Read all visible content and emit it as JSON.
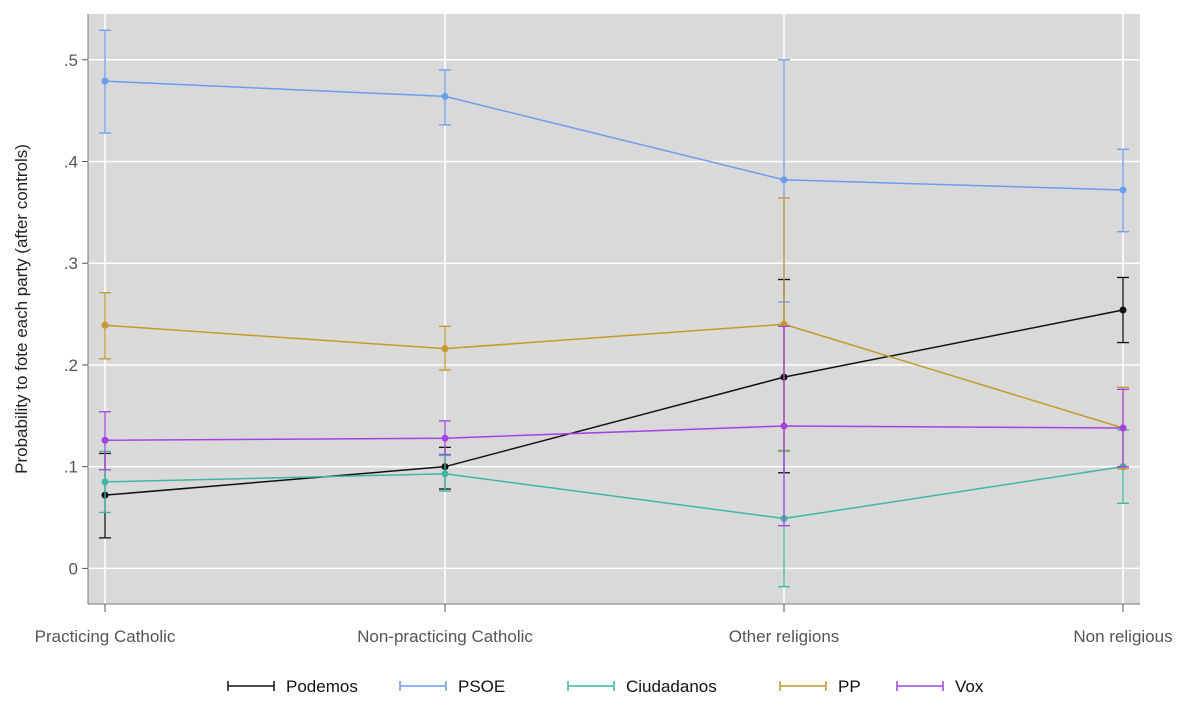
{
  "chart_data": {
    "type": "line",
    "categories": [
      "Practicing Catholic",
      "Non-practicing Catholic",
      "Other religions",
      "Non religious"
    ],
    "ylabel": "Probability to fote each party (after controls)",
    "ylim": [
      -0.035,
      0.545
    ],
    "yticks": [
      0,
      0.1,
      0.2,
      0.3,
      0.4,
      0.5
    ],
    "ytick_labels": [
      "0",
      ".1",
      ".2",
      ".3",
      ".4",
      ".5"
    ],
    "grid": true,
    "legend_position": "bottom",
    "series": [
      {
        "name": "Podemos",
        "color": "#111111",
        "values": [
          0.072,
          0.1,
          0.188,
          0.254
        ],
        "lower": [
          0.03,
          0.078,
          0.094,
          0.222
        ],
        "upper": [
          0.113,
          0.119,
          0.284,
          0.286
        ]
      },
      {
        "name": "PSOE",
        "color": "#6b9ded",
        "values": [
          0.479,
          0.464,
          0.382,
          0.372
        ],
        "lower": [
          0.428,
          0.436,
          0.262,
          0.331
        ],
        "upper": [
          0.529,
          0.49,
          0.5,
          0.412
        ]
      },
      {
        "name": "Ciudadanos",
        "color": "#3fb6a3",
        "values": [
          0.085,
          0.093,
          0.049,
          0.1
        ],
        "lower": [
          0.055,
          0.076,
          -0.018,
          0.064
        ],
        "upper": [
          0.115,
          0.111,
          0.116,
          0.136
        ]
      },
      {
        "name": "PP",
        "color": "#c49a2c",
        "values": [
          0.239,
          0.216,
          0.24,
          0.138
        ],
        "lower": [
          0.206,
          0.195,
          0.115,
          0.098
        ],
        "upper": [
          0.271,
          0.238,
          0.364,
          0.178
        ]
      },
      {
        "name": "Vox",
        "color": "#a444e0",
        "values": [
          0.126,
          0.128,
          0.14,
          0.138
        ],
        "lower": [
          0.097,
          0.112,
          0.042,
          0.1
        ],
        "upper": [
          0.154,
          0.145,
          0.238,
          0.176
        ]
      }
    ]
  }
}
